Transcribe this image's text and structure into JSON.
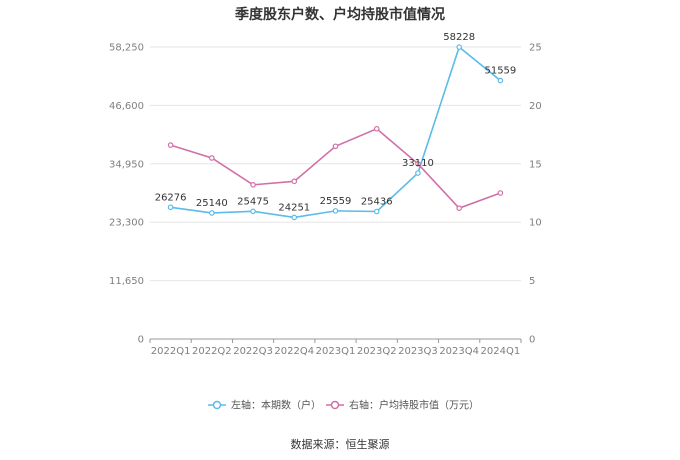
{
  "title": "季度股东户数、户均持股市值情况",
  "source": "数据来源：恒生聚源",
  "colors": {
    "left_series": "#5bbbe9",
    "right_series": "#d070a8",
    "grid": "#e6e6e6",
    "axis": "#999999"
  },
  "chart_data": {
    "type": "line",
    "categories": [
      "2022Q1",
      "2022Q2",
      "2022Q3",
      "2022Q4",
      "2023Q1",
      "2023Q2",
      "2023Q3",
      "2023Q4",
      "2024Q1"
    ],
    "left_axis": {
      "min": 0,
      "max": 58250,
      "ticks": [
        0,
        11650,
        23300,
        34950,
        46600,
        58250
      ],
      "tick_labels": [
        "0",
        "11,650",
        "23,300",
        "34,950",
        "46,600",
        "58,250"
      ]
    },
    "right_axis": {
      "min": 0,
      "max": 25,
      "ticks": [
        0,
        5,
        10,
        15,
        20,
        25
      ],
      "tick_labels": [
        "0",
        "5",
        "10",
        "15",
        "20",
        "25"
      ]
    },
    "grid": true,
    "legend_position": "bottom",
    "series": [
      {
        "name": "左轴：本期数（户）",
        "axis": "left",
        "values": [
          26276,
          25140,
          25475,
          24251,
          25559,
          25436,
          33110,
          58228,
          51559
        ],
        "labels": [
          "26276",
          "25140",
          "25475",
          "24251",
          "25559",
          "25436",
          "33110",
          "58228",
          "51559"
        ]
      },
      {
        "name": "右轴：户均持股市值（万元）",
        "axis": "right",
        "values": [
          16.6,
          15.5,
          13.2,
          13.5,
          16.5,
          18.0,
          15.0,
          11.2,
          12.5
        ]
      }
    ]
  }
}
